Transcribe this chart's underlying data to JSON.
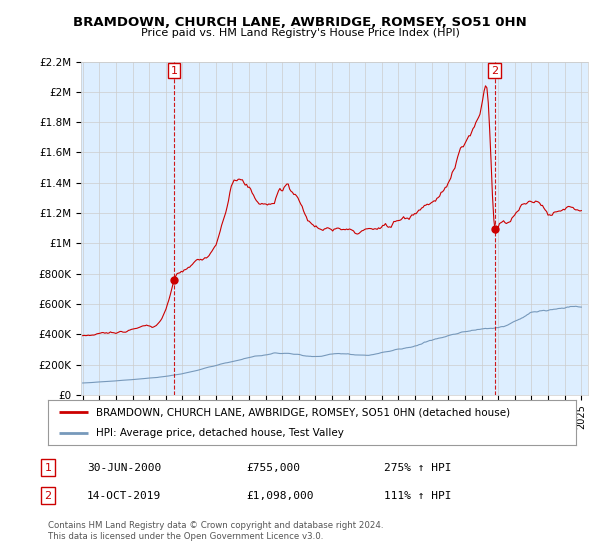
{
  "title": "BRAMDOWN, CHURCH LANE, AWBRIDGE, ROMSEY, SO51 0HN",
  "subtitle": "Price paid vs. HM Land Registry's House Price Index (HPI)",
  "ylim": [
    0,
    2200000
  ],
  "yticks": [
    0,
    200000,
    400000,
    600000,
    800000,
    1000000,
    1200000,
    1400000,
    1600000,
    1800000,
    2000000,
    2200000
  ],
  "ytick_labels": [
    "£0",
    "£200K",
    "£400K",
    "£600K",
    "£800K",
    "£1M",
    "£1.2M",
    "£1.4M",
    "£1.6M",
    "£1.8M",
    "£2M",
    "£2.2M"
  ],
  "xlim_start": 1994.9,
  "xlim_end": 2025.4,
  "marker1_x": 2000.49,
  "marker1_y": 755000,
  "marker2_x": 2019.78,
  "marker2_y": 1098000,
  "marker1_label": "1",
  "marker2_label": "2",
  "marker1_date": "30-JUN-2000",
  "marker1_price": "£755,000",
  "marker1_hpi": "275% ↑ HPI",
  "marker2_date": "14-OCT-2019",
  "marker2_price": "£1,098,000",
  "marker2_hpi": "111% ↑ HPI",
  "legend_line1": "BRAMDOWN, CHURCH LANE, AWBRIDGE, ROMSEY, SO51 0HN (detached house)",
  "legend_line2": "HPI: Average price, detached house, Test Valley",
  "footer1": "Contains HM Land Registry data © Crown copyright and database right 2024.",
  "footer2": "This data is licensed under the Open Government Licence v3.0.",
  "red_color": "#cc0000",
  "blue_color": "#7799bb",
  "fill_color": "#ddeeff",
  "background_color": "#ffffff",
  "grid_color": "#cccccc"
}
